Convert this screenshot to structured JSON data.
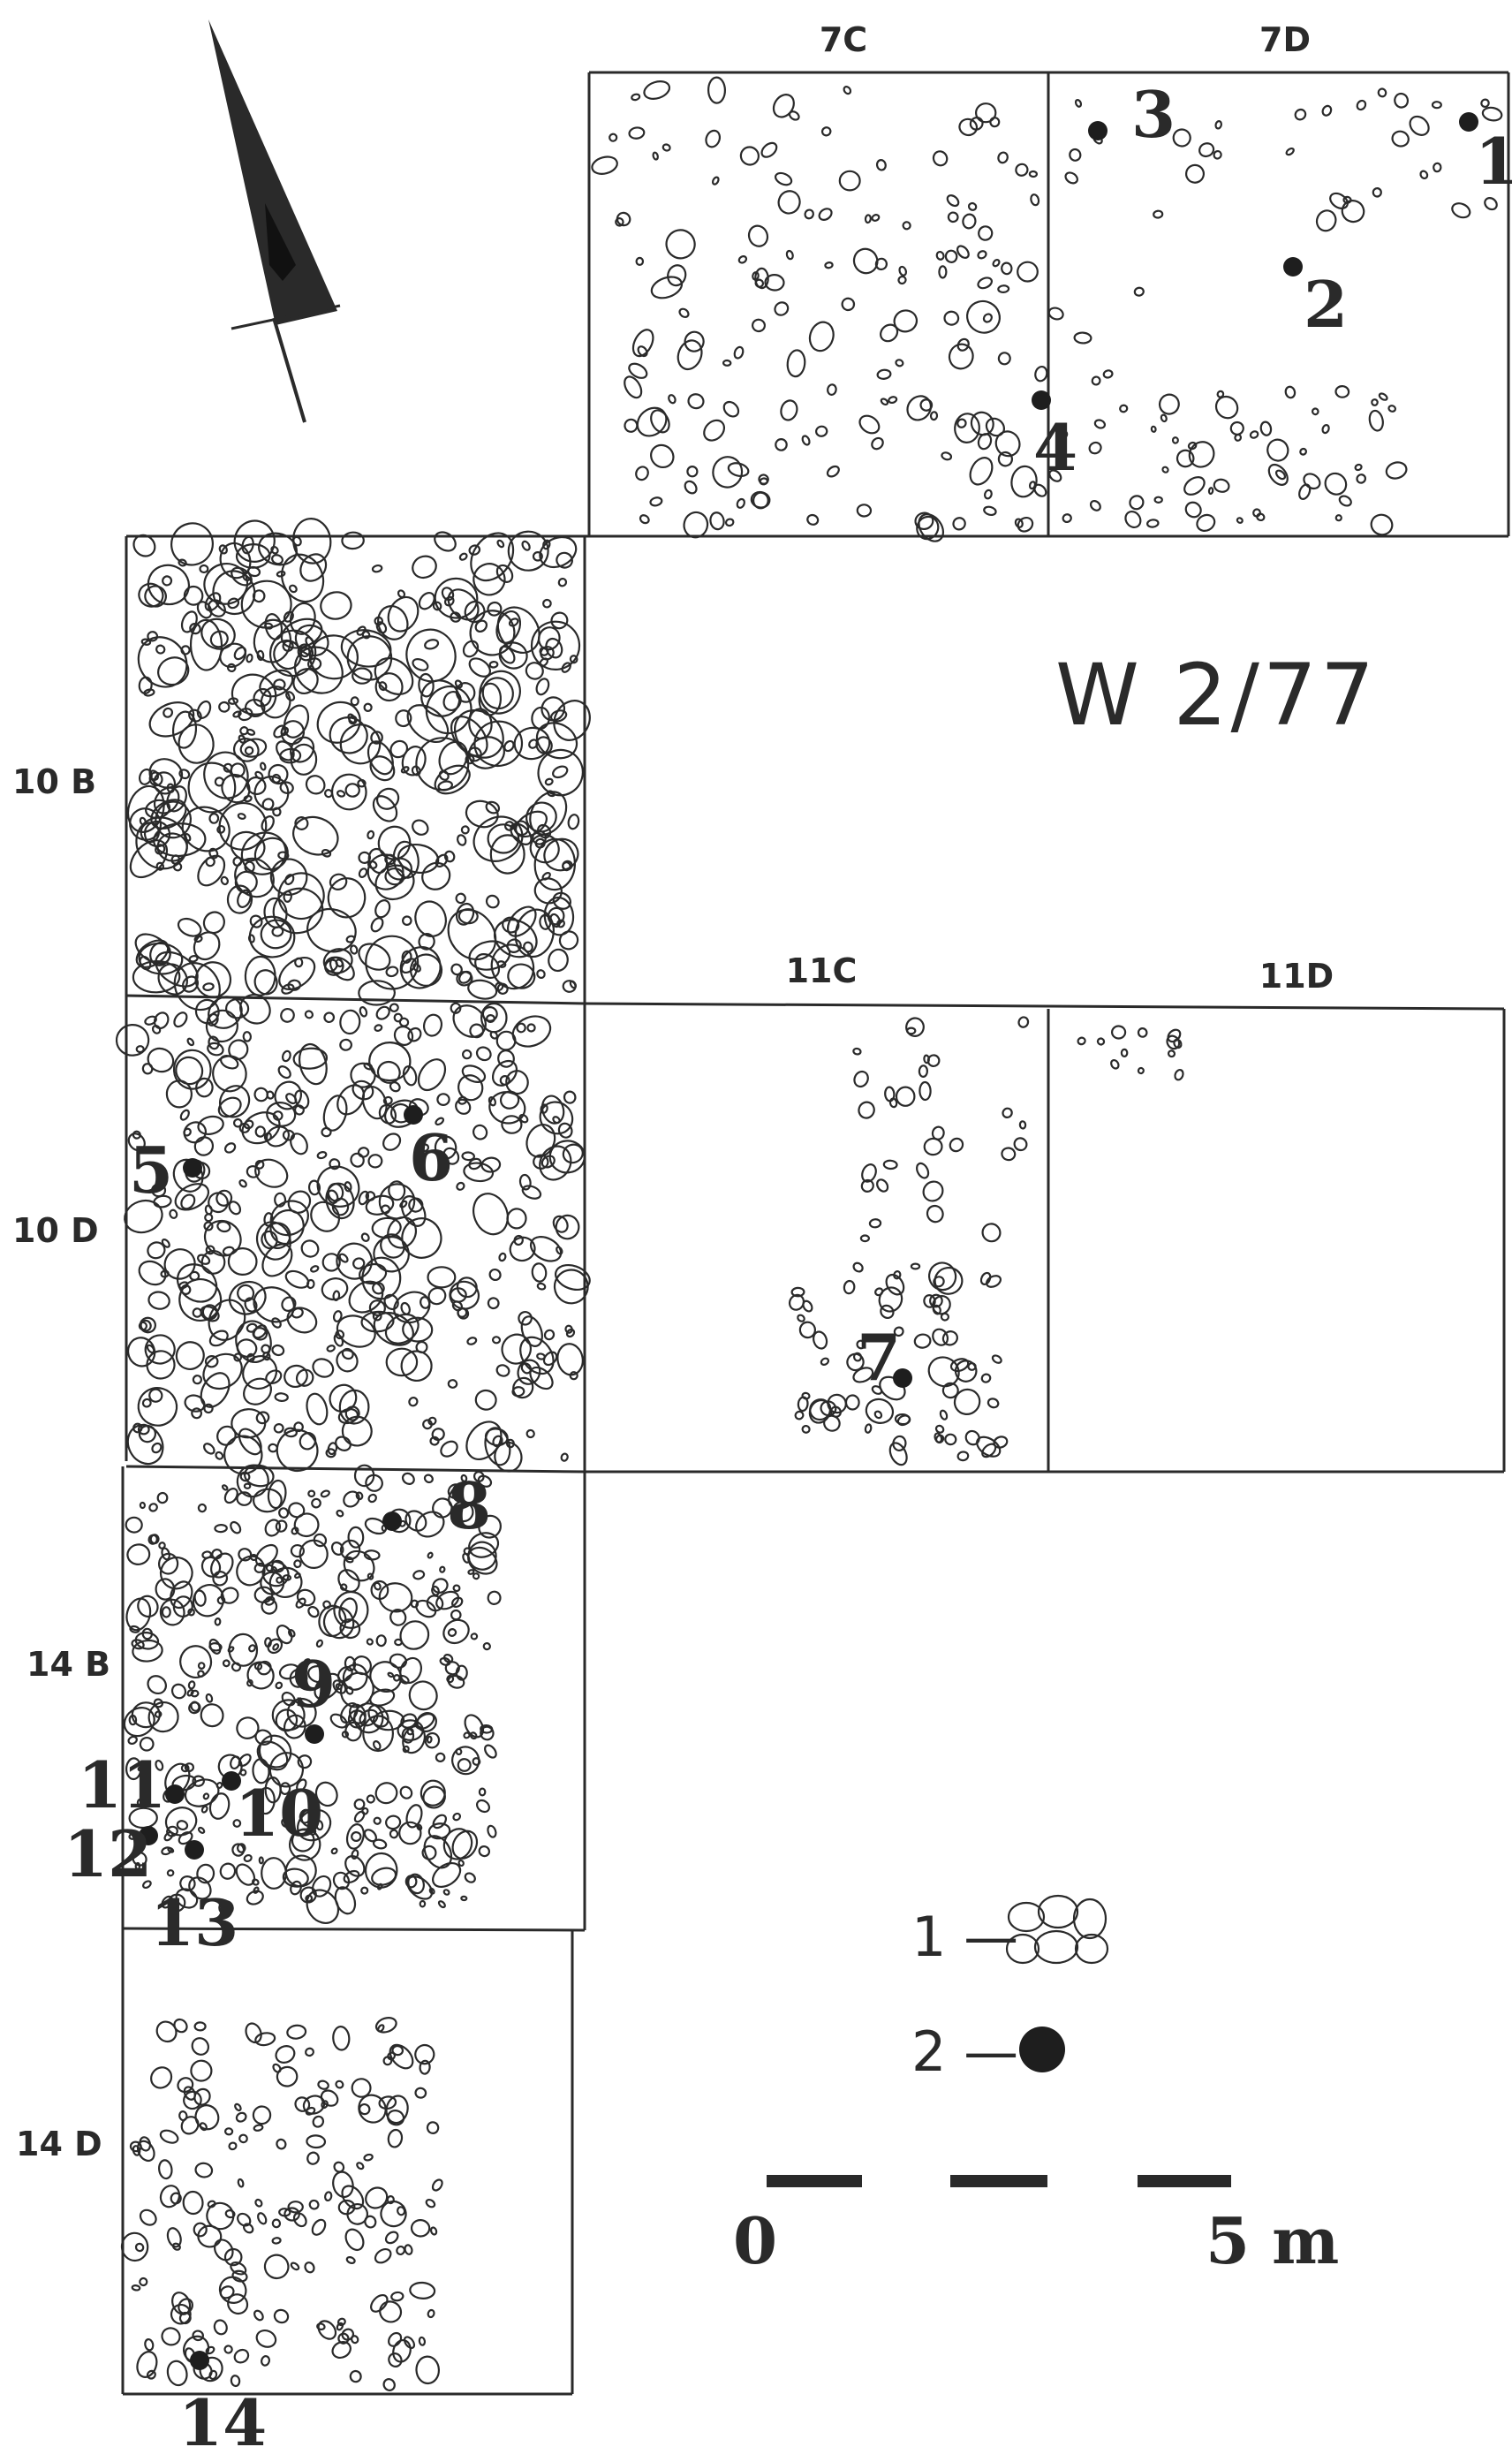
{
  "site_code": "W 2/77",
  "squares": {
    "top": [
      "7C",
      "7D"
    ],
    "middle": [
      "11C",
      "11D"
    ],
    "left": [
      "10 B",
      "10 D",
      "14 B",
      "14 D"
    ]
  },
  "finds": [
    {
      "num": "1"
    },
    {
      "num": "2"
    },
    {
      "num": "3"
    },
    {
      "num": "4"
    },
    {
      "num": "5"
    },
    {
      "num": "6"
    },
    {
      "num": "7"
    },
    {
      "num": "8"
    },
    {
      "num": "9"
    },
    {
      "num": "10"
    },
    {
      "num": "11"
    },
    {
      "num": "12"
    },
    {
      "num": "13"
    },
    {
      "num": "14"
    }
  ],
  "legend": {
    "item1_label": "1 —",
    "item1_icon": "stone-cluster-icon",
    "item2_label": "2 —",
    "item2_icon": "find-dot-icon"
  },
  "scale": {
    "start_label": "0",
    "end_label": "5 m"
  },
  "north_arrow_icon": "north-arrow-icon",
  "colors": {
    "ink": "#2a2a2a",
    "find": "#1e1e1e"
  }
}
